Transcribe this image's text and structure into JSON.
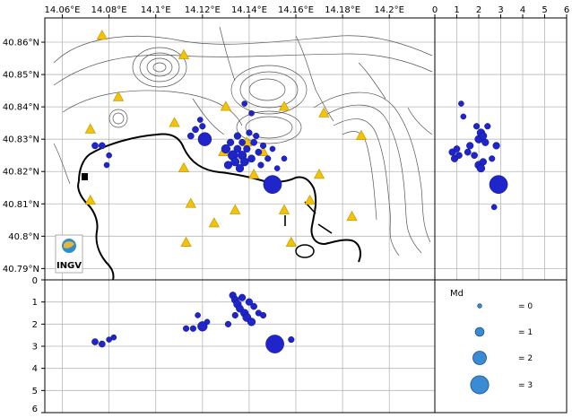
{
  "map": {
    "x_ticks": [
      "14.06°E",
      "14.08°E",
      "14.1°E",
      "14.12°E",
      "14.14°E",
      "14.16°E",
      "14.18°E",
      "14.2°E"
    ],
    "y_ticks": [
      "40.86°N",
      "40.85°N",
      "40.84°N",
      "40.83°N",
      "40.82°N",
      "40.81°N",
      "40.8°N",
      "40.79°N"
    ],
    "logo_text": "INGV",
    "stations": [
      {
        "lon": 14.077,
        "lat": 40.862
      },
      {
        "lon": 14.112,
        "lat": 40.856
      },
      {
        "lon": 14.084,
        "lat": 40.843
      },
      {
        "lon": 14.072,
        "lat": 40.833
      },
      {
        "lon": 14.108,
        "lat": 40.835
      },
      {
        "lon": 14.13,
        "lat": 40.84
      },
      {
        "lon": 14.155,
        "lat": 40.84
      },
      {
        "lon": 14.172,
        "lat": 40.838
      },
      {
        "lon": 14.188,
        "lat": 40.831
      },
      {
        "lon": 14.112,
        "lat": 40.821
      },
      {
        "lon": 14.129,
        "lat": 40.826
      },
      {
        "lon": 14.139,
        "lat": 40.829
      },
      {
        "lon": 14.146,
        "lat": 40.826
      },
      {
        "lon": 14.17,
        "lat": 40.819
      },
      {
        "lon": 14.142,
        "lat": 40.819
      },
      {
        "lon": 14.115,
        "lat": 40.81
      },
      {
        "lon": 14.134,
        "lat": 40.808
      },
      {
        "lon": 14.125,
        "lat": 40.804
      },
      {
        "lon": 14.155,
        "lat": 40.808
      },
      {
        "lon": 14.166,
        "lat": 40.811
      },
      {
        "lon": 14.184,
        "lat": 40.806
      },
      {
        "lon": 14.113,
        "lat": 40.798
      },
      {
        "lon": 14.158,
        "lat": 40.798
      },
      {
        "lon": 14.072,
        "lat": 40.811
      }
    ],
    "quakes": [
      {
        "lon": 14.074,
        "lat": 40.828,
        "md": 0.5
      },
      {
        "lon": 14.077,
        "lat": 40.828,
        "md": 0.5
      },
      {
        "lon": 14.079,
        "lat": 40.822,
        "md": 0.3
      },
      {
        "lon": 14.08,
        "lat": 40.825,
        "md": 0.3
      },
      {
        "lon": 14.115,
        "lat": 40.831,
        "md": 0.5
      },
      {
        "lon": 14.117,
        "lat": 40.833,
        "md": 0.5
      },
      {
        "lon": 14.12,
        "lat": 40.834,
        "md": 0.4
      },
      {
        "lon": 14.121,
        "lat": 40.83,
        "md": 2.0
      },
      {
        "lon": 14.119,
        "lat": 40.836,
        "md": 0.3
      },
      {
        "lon": 14.13,
        "lat": 40.827,
        "md": 1.0
      },
      {
        "lon": 14.131,
        "lat": 40.822,
        "md": 0.8
      },
      {
        "lon": 14.132,
        "lat": 40.829,
        "md": 0.6
      },
      {
        "lon": 14.133,
        "lat": 40.825,
        "md": 1.2
      },
      {
        "lon": 14.134,
        "lat": 40.823,
        "md": 0.9
      },
      {
        "lon": 14.135,
        "lat": 40.827,
        "md": 0.7
      },
      {
        "lon": 14.135,
        "lat": 40.831,
        "md": 0.6
      },
      {
        "lon": 14.136,
        "lat": 40.821,
        "md": 0.8
      },
      {
        "lon": 14.137,
        "lat": 40.825,
        "md": 1.0
      },
      {
        "lon": 14.137,
        "lat": 40.829,
        "md": 0.5
      },
      {
        "lon": 14.138,
        "lat": 40.823,
        "md": 0.9
      },
      {
        "lon": 14.139,
        "lat": 40.827,
        "md": 0.6
      },
      {
        "lon": 14.14,
        "lat": 40.832,
        "md": 0.4
      },
      {
        "lon": 14.141,
        "lat": 40.824,
        "md": 0.7
      },
      {
        "lon": 14.142,
        "lat": 40.829,
        "md": 0.5
      },
      {
        "lon": 14.143,
        "lat": 40.831,
        "md": 0.4
      },
      {
        "lon": 14.144,
        "lat": 40.826,
        "md": 0.5
      },
      {
        "lon": 14.145,
        "lat": 40.822,
        "md": 0.4
      },
      {
        "lon": 14.146,
        "lat": 40.828,
        "md": 0.4
      },
      {
        "lon": 14.148,
        "lat": 40.824,
        "md": 0.4
      },
      {
        "lon": 14.15,
        "lat": 40.827,
        "md": 0.3
      },
      {
        "lon": 14.152,
        "lat": 40.821,
        "md": 0.3
      },
      {
        "lon": 14.155,
        "lat": 40.824,
        "md": 0.3
      },
      {
        "lon": 14.138,
        "lat": 40.841,
        "md": 0.3
      },
      {
        "lon": 14.141,
        "lat": 40.838,
        "md": 0.3
      },
      {
        "lon": 14.15,
        "lat": 40.816,
        "md": 3.0
      }
    ]
  },
  "section_ew": {
    "y_ticks": [
      "0",
      "1",
      "2",
      "3",
      "4",
      "5",
      "6"
    ],
    "quakes": [
      {
        "lon": 14.074,
        "d": 2.8,
        "md": 0.5
      },
      {
        "lon": 14.077,
        "d": 2.9,
        "md": 0.5
      },
      {
        "lon": 14.082,
        "d": 2.6,
        "md": 0.3
      },
      {
        "lon": 14.08,
        "d": 2.7,
        "md": 0.3
      },
      {
        "lon": 14.113,
        "d": 2.2,
        "md": 0.4
      },
      {
        "lon": 14.116,
        "d": 2.2,
        "md": 0.4
      },
      {
        "lon": 14.118,
        "d": 1.6,
        "md": 0.3
      },
      {
        "lon": 14.12,
        "d": 2.1,
        "md": 1.2
      },
      {
        "lon": 14.122,
        "d": 1.9,
        "md": 0.3
      },
      {
        "lon": 14.133,
        "d": 0.7,
        "md": 0.6
      },
      {
        "lon": 14.134,
        "d": 0.9,
        "md": 0.7
      },
      {
        "lon": 14.135,
        "d": 1.1,
        "md": 0.8
      },
      {
        "lon": 14.136,
        "d": 1.3,
        "md": 0.7
      },
      {
        "lon": 14.137,
        "d": 0.8,
        "md": 0.6
      },
      {
        "lon": 14.138,
        "d": 1.5,
        "md": 0.8
      },
      {
        "lon": 14.139,
        "d": 1.7,
        "md": 0.9
      },
      {
        "lon": 14.14,
        "d": 1.0,
        "md": 0.6
      },
      {
        "lon": 14.141,
        "d": 1.9,
        "md": 0.8
      },
      {
        "lon": 14.142,
        "d": 1.2,
        "md": 0.5
      },
      {
        "lon": 14.144,
        "d": 1.5,
        "md": 0.4
      },
      {
        "lon": 14.146,
        "d": 1.6,
        "md": 0.4
      },
      {
        "lon": 14.134,
        "d": 1.6,
        "md": 0.4
      },
      {
        "lon": 14.131,
        "d": 2.0,
        "md": 0.4
      },
      {
        "lon": 14.151,
        "d": 2.9,
        "md": 3.0
      },
      {
        "lon": 14.158,
        "d": 2.7,
        "md": 0.4
      }
    ]
  },
  "section_ns": {
    "x_ticks": [
      "0",
      "1",
      "2",
      "3",
      "4",
      "5",
      "6"
    ],
    "quakes": [
      {
        "d": 1.2,
        "lat": 40.841,
        "md": 0.3
      },
      {
        "d": 1.3,
        "lat": 40.837,
        "md": 0.3
      },
      {
        "d": 0.8,
        "lat": 40.826,
        "md": 0.6
      },
      {
        "d": 0.9,
        "lat": 40.824,
        "md": 0.6
      },
      {
        "d": 1.0,
        "lat": 40.827,
        "md": 0.5
      },
      {
        "d": 1.1,
        "lat": 40.825,
        "md": 0.5
      },
      {
        "d": 1.5,
        "lat": 40.826,
        "md": 0.5
      },
      {
        "d": 1.6,
        "lat": 40.828,
        "md": 0.6
      },
      {
        "d": 1.8,
        "lat": 40.825,
        "md": 0.5
      },
      {
        "d": 2.0,
        "lat": 40.83,
        "md": 0.8
      },
      {
        "d": 2.1,
        "lat": 40.832,
        "md": 0.8
      },
      {
        "d": 2.2,
        "lat": 40.831,
        "md": 0.7
      },
      {
        "d": 2.3,
        "lat": 40.829,
        "md": 0.6
      },
      {
        "d": 2.0,
        "lat": 40.822,
        "md": 0.8
      },
      {
        "d": 2.1,
        "lat": 40.821,
        "md": 0.8
      },
      {
        "d": 2.2,
        "lat": 40.823,
        "md": 0.6
      },
      {
        "d": 1.9,
        "lat": 40.834,
        "md": 0.4
      },
      {
        "d": 2.4,
        "lat": 40.834,
        "md": 0.4
      },
      {
        "d": 2.8,
        "lat": 40.828,
        "md": 0.6
      },
      {
        "d": 2.6,
        "lat": 40.824,
        "md": 0.4
      },
      {
        "d": 2.9,
        "lat": 40.816,
        "md": 3.0
      },
      {
        "d": 2.7,
        "lat": 40.809,
        "md": 0.3
      }
    ]
  },
  "legend": {
    "title": "Md",
    "entries": [
      {
        "label": "= 0",
        "md": 0
      },
      {
        "label": "= 1",
        "md": 1
      },
      {
        "label": "= 2",
        "md": 2
      },
      {
        "label": "= 3",
        "md": 3
      }
    ]
  },
  "colors": {
    "quake": "#1f25c9",
    "station": "#f4c20d",
    "grid": "#b7b7b7",
    "legend_marker": "#3a8bd6"
  }
}
